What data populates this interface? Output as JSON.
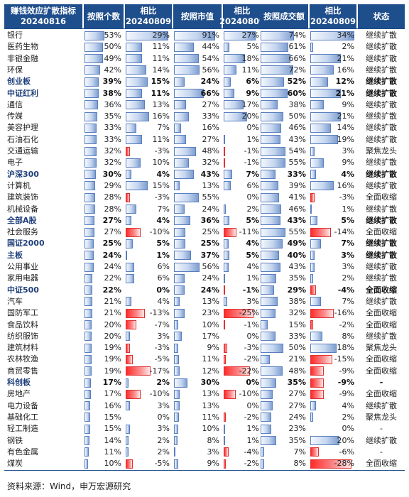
{
  "headers": [
    {
      "line1": "赚钱效应扩散指标",
      "line2": "20240816"
    },
    {
      "line1": "按照个数",
      "line2": ""
    },
    {
      "line1": "相比",
      "line2": "20240809"
    },
    {
      "line1": "按照市值",
      "line2": ""
    },
    {
      "line1": "相比",
      "line2": "20240809"
    },
    {
      "line1": "按照成交额",
      "line2": ""
    },
    {
      "line1": "相比",
      "line2": "20240809"
    },
    {
      "line1": "状态",
      "line2": ""
    }
  ],
  "rows": [
    {
      "name": "银行",
      "count": "53%",
      "dcount": "29%",
      "mv": "91%",
      "dmv": "27%",
      "amt": "74%",
      "damt": "34%",
      "status": "继续扩散",
      "bold": false
    },
    {
      "name": "医药生物",
      "count": "50%",
      "dcount": "11%",
      "mv": "44%",
      "dmv": "5%",
      "amt": "61%",
      "damt": "2%",
      "status": "继续扩散",
      "bold": false
    },
    {
      "name": "非银金融",
      "count": "49%",
      "dcount": "11%",
      "mv": "54%",
      "dmv": "18%",
      "amt": "66%",
      "damt": "21%",
      "status": "继续扩散",
      "bold": false
    },
    {
      "name": "环保",
      "count": "42%",
      "dcount": "14%",
      "mv": "56%",
      "dmv": "11%",
      "amt": "72%",
      "damt": "16%",
      "status": "继续扩散",
      "bold": false
    },
    {
      "name": "创业板",
      "count": "39%",
      "dcount": "15%",
      "mv": "24%",
      "dmv": "6%",
      "amt": "52%",
      "damt": "12%",
      "status": "继续扩散",
      "bold": true
    },
    {
      "name": "中证红利",
      "count": "38%",
      "dcount": "11%",
      "mv": "66%",
      "dmv": "9%",
      "amt": "60%",
      "damt": "21%",
      "status": "继续扩散",
      "bold": true
    },
    {
      "name": "通信",
      "count": "36%",
      "dcount": "13%",
      "mv": "27%",
      "dmv": "17%",
      "amt": "38%",
      "damt": "9%",
      "status": "继续扩散",
      "bold": false
    },
    {
      "name": "传媒",
      "count": "35%",
      "dcount": "16%",
      "mv": "33%",
      "dmv": "20%",
      "amt": "50%",
      "damt": "21%",
      "status": "继续扩散",
      "bold": false
    },
    {
      "name": "美容护理",
      "count": "33%",
      "dcount": "7%",
      "mv": "16%",
      "dmv": "0%",
      "amt": "46%",
      "damt": "14%",
      "status": "继续扩散",
      "bold": false
    },
    {
      "name": "石油石化",
      "count": "33%",
      "dcount": "11%",
      "mv": "27%",
      "dmv": "1%",
      "amt": "43%",
      "damt": "19%",
      "status": "继续扩散",
      "bold": false
    },
    {
      "name": "交通运输",
      "count": "32%",
      "dcount": "-3%",
      "mv": "48%",
      "dmv": "-1%",
      "amt": "54%",
      "damt": "3%",
      "status": "聚焦龙头",
      "bold": false
    },
    {
      "name": "电子",
      "count": "32%",
      "dcount": "10%",
      "mv": "32%",
      "dmv": "-1%",
      "amt": "55%",
      "damt": "9%",
      "status": "继续扩散",
      "bold": false
    },
    {
      "name": "沪深300",
      "count": "30%",
      "dcount": "4%",
      "mv": "43%",
      "dmv": "7%",
      "amt": "33%",
      "damt": "4%",
      "status": "继续扩散",
      "bold": true
    },
    {
      "name": "计算机",
      "count": "29%",
      "dcount": "15%",
      "mv": "13%",
      "dmv": "6%",
      "amt": "39%",
      "damt": "16%",
      "status": "继续扩散",
      "bold": false
    },
    {
      "name": "建筑装饰",
      "count": "28%",
      "dcount": "-3%",
      "mv": "55%",
      "dmv": "0%",
      "amt": "41%",
      "damt": "-3%",
      "status": "全面收缩",
      "bold": false
    },
    {
      "name": "机械设备",
      "count": "28%",
      "dcount": "7%",
      "mv": "24%",
      "dmv": "2%",
      "amt": "46%",
      "damt": "1%",
      "status": "继续扩散",
      "bold": false
    },
    {
      "name": "全部A股",
      "count": "27%",
      "dcount": "4%",
      "mv": "36%",
      "dmv": "5%",
      "amt": "43%",
      "damt": "5%",
      "status": "继续扩散",
      "bold": true
    },
    {
      "name": "社会服务",
      "count": "27%",
      "dcount": "-10%",
      "mv": "25%",
      "dmv": "-11%",
      "amt": "55%",
      "damt": "-14%",
      "status": "全面收缩",
      "bold": false
    },
    {
      "name": "国证2000",
      "count": "25%",
      "dcount": "5%",
      "mv": "25%",
      "dmv": "4%",
      "amt": "49%",
      "damt": "7%",
      "status": "继续扩散",
      "bold": true
    },
    {
      "name": "主板",
      "count": "24%",
      "dcount": "1%",
      "mv": "37%",
      "dmv": "5%",
      "amt": "40%",
      "damt": "3%",
      "status": "继续扩散",
      "bold": true
    },
    {
      "name": "公用事业",
      "count": "24%",
      "dcount": "6%",
      "mv": "56%",
      "dmv": "4%",
      "amt": "43%",
      "damt": "3%",
      "status": "继续扩散",
      "bold": false
    },
    {
      "name": "家用电器",
      "count": "22%",
      "dcount": "6%",
      "mv": "24%",
      "dmv": "1%",
      "amt": "35%",
      "damt": "2%",
      "status": "继续扩散",
      "bold": false
    },
    {
      "name": "中证500",
      "count": "22%",
      "dcount": "0%",
      "mv": "24%",
      "dmv": "-1%",
      "amt": "29%",
      "damt": "-4%",
      "status": "全面收缩",
      "bold": true
    },
    {
      "name": "汽车",
      "count": "21%",
      "dcount": "4%",
      "mv": "13%",
      "dmv": "3%",
      "amt": "38%",
      "damt": "7%",
      "status": "继续扩散",
      "bold": false
    },
    {
      "name": "国防军工",
      "count": "21%",
      "dcount": "-13%",
      "mv": "23%",
      "dmv": "-25%",
      "amt": "32%",
      "damt": "-16%",
      "status": "全面收缩",
      "bold": false
    },
    {
      "name": "食品饮料",
      "count": "20%",
      "dcount": "-7%",
      "mv": "10%",
      "dmv": "-1%",
      "amt": "15%",
      "damt": "-2%",
      "status": "全面收缩",
      "bold": false
    },
    {
      "name": "纺织服饰",
      "count": "20%",
      "dcount": "3%",
      "mv": "17%",
      "dmv": "0%",
      "amt": "33%",
      "damt": "8%",
      "status": "继续扩散",
      "bold": false
    },
    {
      "name": "建筑材料",
      "count": "19%",
      "dcount": "-3%",
      "mv": "9%",
      "dmv": "-3%",
      "amt": "50%",
      "damt": "18%",
      "status": "聚焦龙头",
      "bold": false
    },
    {
      "name": "农林牧渔",
      "count": "19%",
      "dcount": "-5%",
      "mv": "11%",
      "dmv": "-2%",
      "amt": "21%",
      "damt": "-15%",
      "status": "全面收缩",
      "bold": false
    },
    {
      "name": "商贸零售",
      "count": "19%",
      "dcount": "-17%",
      "mv": "12%",
      "dmv": "-22%",
      "amt": "48%",
      "damt": "-9%",
      "status": "全面收缩",
      "bold": false
    },
    {
      "name": "科创板",
      "count": "17%",
      "dcount": "2%",
      "mv": "30%",
      "dmv": "0%",
      "amt": "35%",
      "damt": "-9%",
      "status": "-",
      "bold": true
    },
    {
      "name": "房地产",
      "count": "17%",
      "dcount": "-10%",
      "mv": "13%",
      "dmv": "-10%",
      "amt": "27%",
      "damt": "-9%",
      "status": "全面收缩",
      "bold": false
    },
    {
      "name": "电力设备",
      "count": "16%",
      "dcount": "3%",
      "mv": "13%",
      "dmv": "0%",
      "amt": "27%",
      "damt": "4%",
      "status": "继续扩散",
      "bold": false
    },
    {
      "name": "基础化工",
      "count": "15%",
      "dcount": "0%",
      "mv": "11%",
      "dmv": "-2%",
      "amt": "24%",
      "damt": "2%",
      "status": "聚焦龙头",
      "bold": false
    },
    {
      "name": "轻工制造",
      "count": "15%",
      "dcount": "3%",
      "mv": "10%",
      "dmv": "1%",
      "amt": "23%",
      "damt": "0%",
      "status": "-",
      "bold": false
    },
    {
      "name": "钢铁",
      "count": "14%",
      "dcount": "2%",
      "mv": "8%",
      "dmv": "1%",
      "amt": "35%",
      "damt": "20%",
      "status": "继续扩散",
      "bold": false
    },
    {
      "name": "有色金属",
      "count": "11%",
      "dcount": "2%",
      "mv": "3%",
      "dmv": "-4%",
      "amt": "7%",
      "damt": "-6%",
      "status": "-",
      "bold": false
    },
    {
      "name": "煤炭",
      "count": "10%",
      "dcount": "-5%",
      "mv": "9%",
      "dmv": "-2%",
      "amt": "8%",
      "damt": "-28%",
      "status": "全面收缩",
      "bold": false
    }
  ],
  "source": "资料来源：Wind，申万宏源研究"
}
